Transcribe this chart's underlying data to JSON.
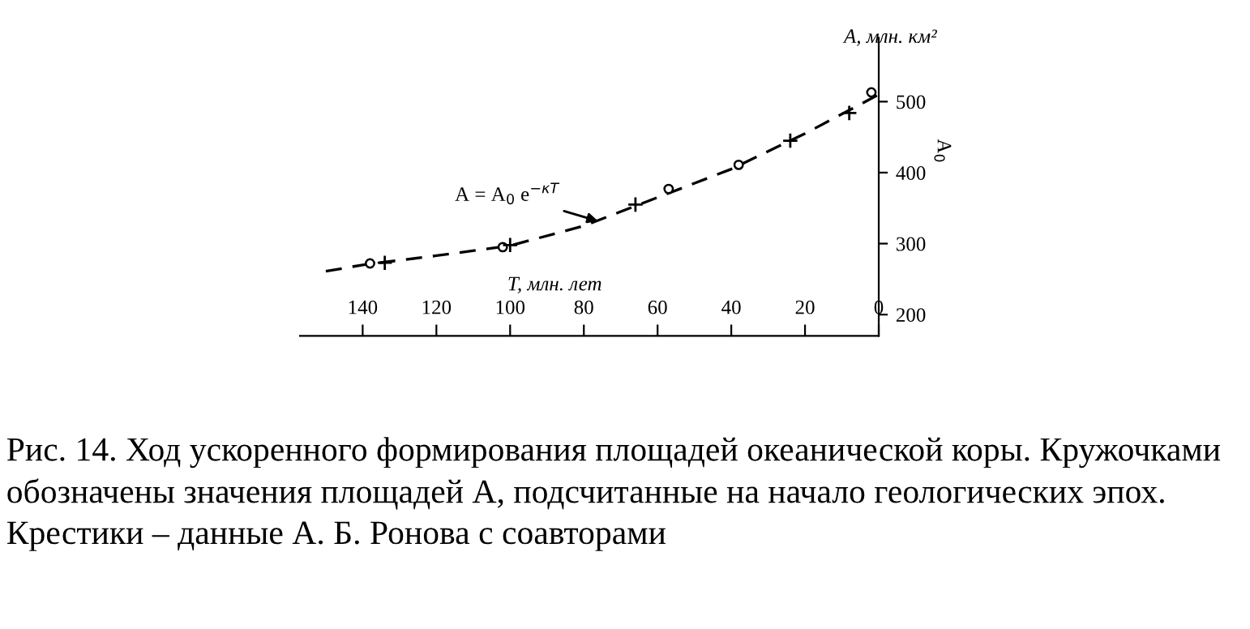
{
  "chart_data": {
    "type": "line",
    "xlabel": "T, млн. лет",
    "ylabel": "А, млн. км²",
    "x": [
      150,
      140,
      120,
      100,
      80,
      60,
      40,
      20,
      0
    ],
    "xlim": [
      157,
      0
    ],
    "xticks": [
      140,
      120,
      100,
      80,
      60,
      40,
      20,
      0
    ],
    "ylim": [
      170,
      590
    ],
    "yticks": [
      200,
      300,
      400,
      500
    ],
    "series": [
      {
        "color": "#000000",
        "line_style": "dashed",
        "marker": "none",
        "values": [
          261,
          270,
          283,
          297,
          325,
          365,
          405,
          455,
          510
        ]
      },
      {
        "type": "scatter",
        "color": "#000000",
        "marker": "circle",
        "x": [
          138,
          102,
          57,
          38,
          2
        ],
        "values": [
          272,
          295,
          377,
          411,
          513
        ]
      },
      {
        "type": "scatter",
        "color": "#000000",
        "marker": "cross",
        "x": [
          134,
          100,
          66,
          24,
          8
        ],
        "values": [
          273,
          298,
          355,
          445,
          484
        ]
      }
    ],
    "grid": false,
    "annotations": [
      {
        "text": "A = A$_{0}$ e$^{−κT}$",
        "x": 75,
        "y": 330
      },
      "А$_{0}$",
      "Рис. 14. Ход ускоренного формирования площадей океанической коры. Кружочками обозначены значения площадей А, подсчитанные на начало геологических эпох. Крестики – данные А. Б. Ронова с соавторами"
    ]
  }
}
